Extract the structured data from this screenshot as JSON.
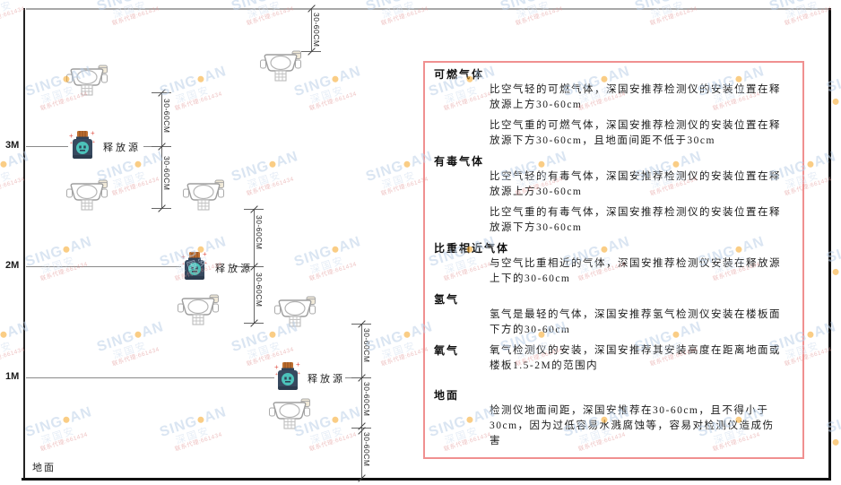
{
  "diagram": {
    "axis": {
      "labels": [
        "3M",
        "2M",
        "1M"
      ],
      "ground_label": "地面"
    },
    "sources": [
      {
        "label": "释放源"
      },
      {
        "label": "释放源"
      },
      {
        "label": "释放源"
      }
    ],
    "dimension_labels": [
      "30-60CM",
      "30-60CM",
      "30-60CM",
      "30-60CM",
      "30-60CM",
      "30-60CM",
      "30-60CM",
      "30-60CM"
    ],
    "colors": {
      "wall": "#222222",
      "ceiling": "#a8a8a8",
      "bottle_body": "#37495f",
      "bottle_cap": "#c07030",
      "bottle_badge": "#4cc2ba",
      "detector_outline": "#9e9e9e"
    }
  },
  "panel": {
    "border_color": "#f09090",
    "sections": [
      {
        "heading": "可燃气体",
        "paragraphs": [
          "比空气轻的可燃气体，深国安推荐检测仪的安装位置在释放源上方30-60cm",
          "比空气重的可燃气体，深国安推荐检测仪的安装位置在释放源下方30-60cm，且地面间距不低于30cm"
        ]
      },
      {
        "heading": "有毒气体",
        "paragraphs": [
          "比空气轻的有毒气体，深国安推荐检测仪的安装位置在释放源上方30-60cm",
          "比空气重的有毒气体，深国安推荐检测仪的安装位置在释放源下方30-60cm"
        ]
      },
      {
        "heading": "比重相近气体",
        "paragraphs": [
          "与空气比重相近的气体，深国安推荐检测仪安装在释放源上下的30-60cm"
        ]
      },
      {
        "heading": "氢气",
        "paragraphs": [
          "氢气是最轻的气体，深国安推荐氢气检测仪安装在楼板面下方的30-60cm"
        ]
      },
      {
        "heading": "氧气",
        "paragraphs": [
          "氧气检测仪的安装，深国安推荐其安装高度在距离地面或楼板1.5-2M的范围内"
        ]
      },
      {
        "heading": "地面",
        "paragraphs": [
          "检测仪地面间距，深国安推荐在30-60cm，且不得小于30cm，因为过低容易水溅腐蚀等，容易对检测仪造成伤害"
        ]
      }
    ]
  },
  "watermark": {
    "brand_prefix": "SING",
    "brand_suffix": "AN",
    "dot_color": "#f6a623",
    "cjk": "深国安",
    "note": "联系代理:661434",
    "color": "#bdd1e8"
  }
}
